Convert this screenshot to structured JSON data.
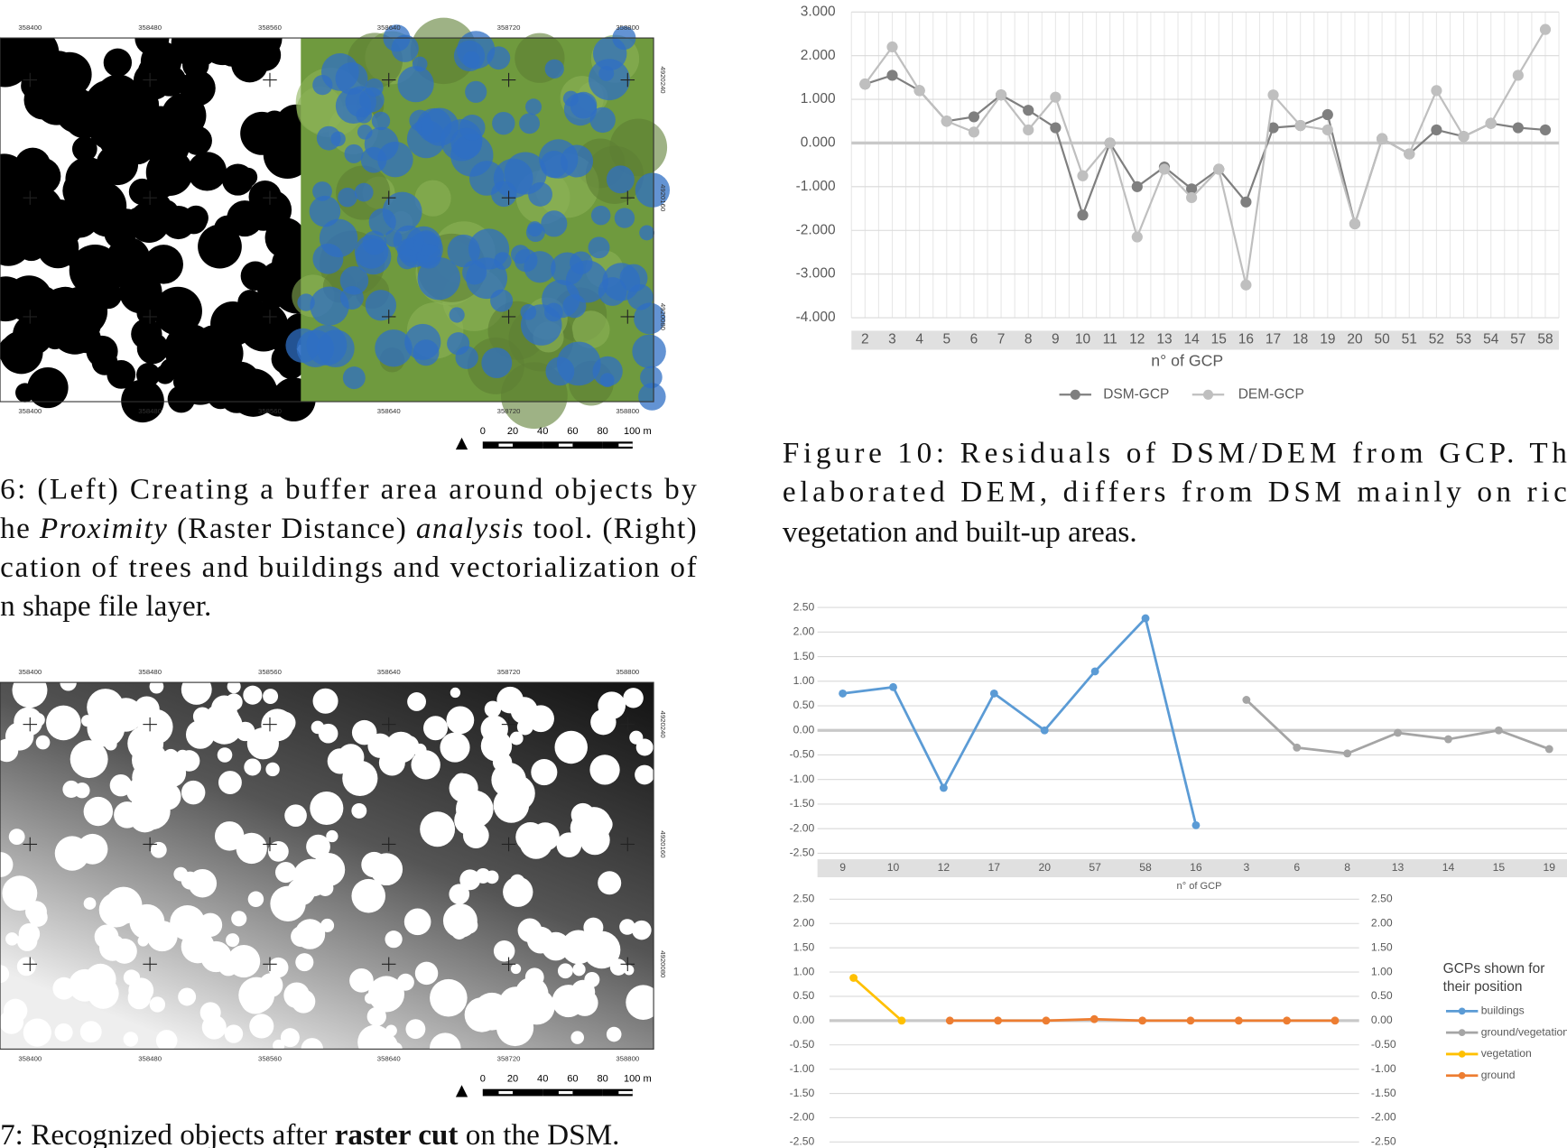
{
  "chart_data": [
    {
      "type": "line",
      "categories": [
        "2",
        "3",
        "4",
        "5",
        "6",
        "7",
        "8",
        "9",
        "10",
        "11",
        "12",
        "13",
        "14",
        "15",
        "16",
        "17",
        "18",
        "19",
        "20",
        "50",
        "51",
        "52",
        "53",
        "54",
        "57",
        "58"
      ],
      "x_label": "n° of GCP",
      "ylim": [
        -4,
        3
      ],
      "yticks": [
        {
          "value": 3,
          "label": "3.000"
        },
        {
          "value": 2,
          "label": "2.000"
        },
        {
          "value": 1,
          "label": "1.000"
        },
        {
          "value": 0,
          "label": "0.000"
        },
        {
          "value": -1,
          "label": "-1.000"
        },
        {
          "value": -2,
          "label": "-2.000"
        },
        {
          "value": -3,
          "label": "-3.000"
        },
        {
          "value": -4,
          "label": "-4.000"
        }
      ],
      "series": [
        {
          "name": "DSM-GCP",
          "color": "#7f7f7f",
          "values": [
            1.35,
            1.55,
            1.2,
            0.5,
            0.6,
            1.1,
            0.75,
            0.35,
            -1.65,
            0.0,
            -1.0,
            -0.55,
            -1.05,
            -0.6,
            -1.35,
            0.35,
            0.4,
            0.65,
            -1.85,
            0.1,
            -0.25,
            0.3,
            0.15,
            0.45,
            0.35,
            0.3
          ]
        },
        {
          "name": "DEM-GCP",
          "color": "#bfbfbf",
          "values": [
            1.35,
            2.2,
            1.2,
            0.5,
            0.25,
            1.1,
            0.3,
            1.05,
            -0.75,
            0.0,
            -2.15,
            -0.6,
            -1.25,
            -0.6,
            -3.25,
            1.1,
            0.4,
            0.3,
            -1.85,
            0.1,
            -0.25,
            1.2,
            0.15,
            0.45,
            1.55,
            2.6
          ]
        }
      ]
    },
    {
      "type": "line",
      "categories": [
        "9",
        "10",
        "12",
        "17",
        "20",
        "57",
        "58",
        "16",
        "3",
        "6",
        "8",
        "13",
        "14",
        "15",
        "19"
      ],
      "x_label": "n° of GCP",
      "ylim": [
        -2.5,
        2.5
      ],
      "yticks": [
        {
          "value": 2.5,
          "label": "2.50"
        },
        {
          "value": 2,
          "label": "2.00"
        },
        {
          "value": 1.5,
          "label": "1.50"
        },
        {
          "value": 1,
          "label": "1.00"
        },
        {
          "value": 0.5,
          "label": "0.50"
        },
        {
          "value": 0,
          "label": "0.00"
        },
        {
          "value": -0.5,
          "label": "-0.50"
        },
        {
          "value": -1,
          "label": "-1.00"
        },
        {
          "value": -1.5,
          "label": "-1.50"
        },
        {
          "value": -2,
          "label": "-2.00"
        },
        {
          "value": -2.5,
          "label": "-2.50"
        }
      ],
      "series": [
        {
          "name": "buildings",
          "color": "#5b9bd5",
          "values": [
            0.75,
            0.88,
            -1.17,
            0.75,
            0.0,
            1.2,
            2.28,
            -1.93,
            null,
            null,
            null,
            null,
            null,
            null,
            null
          ]
        },
        {
          "name": "ground/vegetation",
          "color": "#a5a5a5",
          "values": [
            null,
            null,
            null,
            null,
            null,
            null,
            null,
            null,
            0.62,
            -0.35,
            -0.47,
            -0.05,
            -0.18,
            0.0,
            -0.38
          ]
        }
      ]
    },
    {
      "type": "line",
      "categories": [
        null,
        null,
        null,
        null,
        null,
        null,
        null,
        null,
        null,
        null,
        null
      ],
      "legend_title": [
        "GCPs shown for",
        "their position"
      ],
      "ylim": [
        -2.5,
        2.5
      ],
      "yticks": [
        {
          "value": 2.5,
          "label": "2.50"
        },
        {
          "value": 2,
          "label": "2.00"
        },
        {
          "value": 1.5,
          "label": "1.50"
        },
        {
          "value": 1,
          "label": "1.00"
        },
        {
          "value": 0.5,
          "label": "0.50"
        },
        {
          "value": 0,
          "label": "0.00"
        },
        {
          "value": -0.5,
          "label": "-0.50"
        },
        {
          "value": -1,
          "label": "-1.00"
        },
        {
          "value": -1.5,
          "label": "-1.50"
        },
        {
          "value": -2,
          "label": "-2.00"
        },
        {
          "value": -2.5,
          "label": "-2.50"
        }
      ],
      "y2lim": [
        -2.5,
        2.5
      ],
      "y2ticks": [
        {
          "value": 2.5,
          "label": "2.50"
        },
        {
          "value": 2,
          "label": "2.00"
        },
        {
          "value": 1.5,
          "label": "1.50"
        },
        {
          "value": 1,
          "label": "1.00"
        },
        {
          "value": 0.5,
          "label": "0.50"
        },
        {
          "value": 0,
          "label": "0.00"
        },
        {
          "value": -0.5,
          "label": "-0.50"
        },
        {
          "value": -1,
          "label": "-1.00"
        },
        {
          "value": -1.5,
          "label": "-1.50"
        },
        {
          "value": -2,
          "label": "-2.00"
        },
        {
          "value": -2.5,
          "label": "-2.50"
        }
      ],
      "series": [
        {
          "name": "vegetation",
          "color": "#ffc000",
          "values": [
            0.88,
            0.0,
            null,
            null,
            null,
            null,
            null,
            null,
            null,
            null,
            null
          ]
        },
        {
          "name": "ground",
          "color": "#ed7d31",
          "values": [
            null,
            null,
            0.0,
            0.0,
            0.0,
            0.03,
            0.0,
            0.0,
            0.0,
            0.0,
            0.0
          ]
        }
      ]
    }
  ],
  "figure6": {
    "map_x_labels": [
      "358400",
      "358480",
      "358560",
      "358640",
      "358720",
      "358800"
    ],
    "map_y_labels": [
      "4920240",
      "4920160",
      "4920080"
    ],
    "scale_bar": [
      "0",
      "20",
      "40",
      "60",
      "80",
      "100 m"
    ],
    "caption": [
      [
        "6: (Left) Creating a buffer area around objects by"
      ],
      [
        "he ",
        "Proximity",
        " (Raster Distance) ",
        "analysis",
        " tool. (Right)"
      ],
      [
        "cation of trees and buildings and vectorialization of"
      ],
      [
        "n shape file layer."
      ]
    ]
  },
  "figure7": {
    "map_x_labels": [
      "358400",
      "358480",
      "358560",
      "358640",
      "358720",
      "358800"
    ],
    "map_y_labels": [
      "4920240",
      "4920160",
      "4920080"
    ],
    "scale_bar": [
      "0",
      "20",
      "40",
      "60",
      "80",
      "100 m"
    ],
    "caption": [
      [
        "7: Recognized objects after ",
        "raster cut",
        " on the DSM."
      ]
    ]
  },
  "figure10": {
    "caption": [
      "Figure 10: Residuals of DSM/DEM from GCP. Th",
      "elaborated DEM, differs from DSM mainly on ric",
      "vegetation and built-up areas."
    ]
  }
}
